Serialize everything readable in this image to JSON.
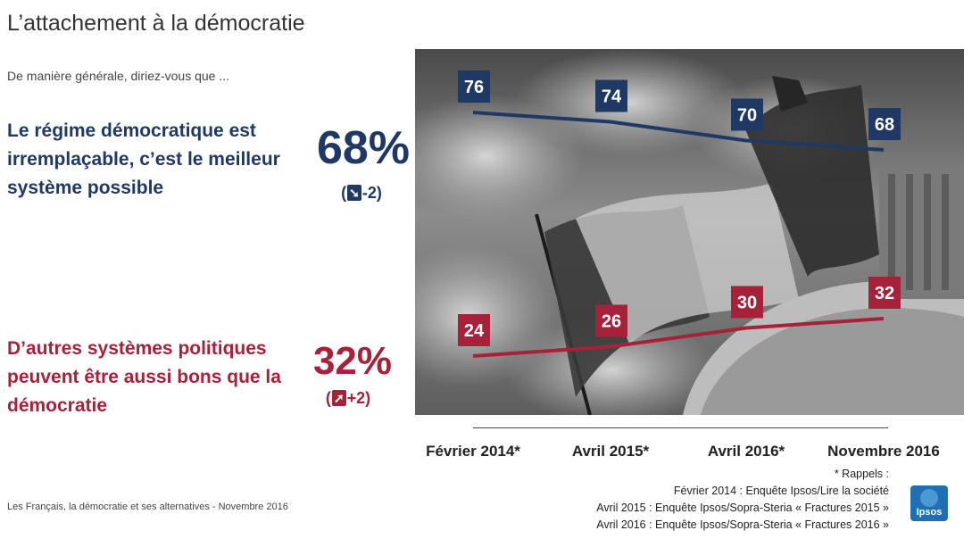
{
  "slide": {
    "title": "L’attachement à la démocratie",
    "question": "De manière générale, diriez-vous que ...",
    "footer": "Les Français, la démocratie et ses alternatives - Novembre 2016",
    "logo_text": "Ipsos"
  },
  "statements": [
    {
      "text": "Le régime démocratique est irremplaçable, c’est le meilleur système possible",
      "value": "68%",
      "change_open": "(",
      "change_icon": "down-right-arrow-icon",
      "change_arrow": "➘",
      "change_value": "-2)",
      "color": "#1f3864"
    },
    {
      "text": "D’autres systèmes politiques peuvent être aussi bons que la démocratie",
      "value": "32%",
      "change_open": "(",
      "change_icon": "up-right-arrow-icon",
      "change_arrow": "➚",
      "change_value": "+2)",
      "color": "#a5223a"
    }
  ],
  "chart_data": {
    "type": "line",
    "categories": [
      "Février 2014*",
      "Avril 2015*",
      "Avril 2016*",
      "Novembre 2016"
    ],
    "series": [
      {
        "values": [
          76,
          74,
          70,
          68
        ],
        "color": "#1f3864"
      },
      {
        "values": [
          24,
          26,
          30,
          32
        ],
        "color": "#a5223a"
      }
    ],
    "data_labels": true,
    "background": "photo-of-french-flags"
  },
  "notes": [
    "* Rappels :",
    "Février 2014 : Enquête Ipsos/Lire la société",
    "Avril 2015 : Enquête Ipsos/Sopra-Steria « Fractures 2015 »",
    "Avril 2016 : Enquête Ipsos/Sopra-Steria « Fractures 2016 »"
  ]
}
